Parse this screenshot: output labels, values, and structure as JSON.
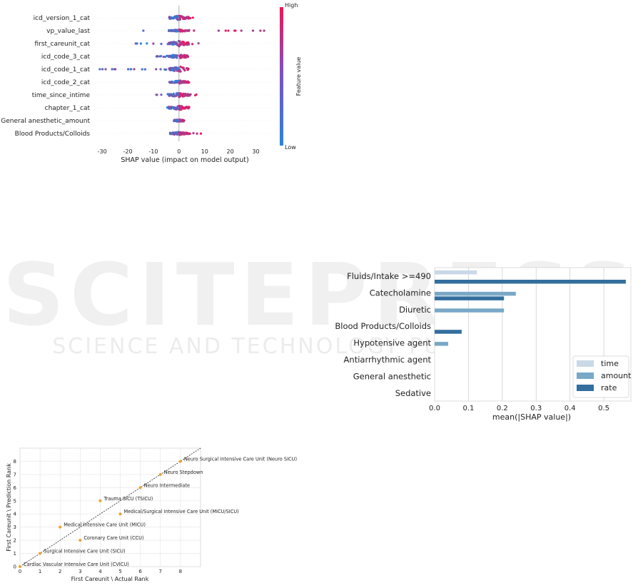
{
  "watermark": {
    "line1": "SCITEPRESS",
    "line2": "SCIENCE AND TECHNOLOGY PUBLICATIONS"
  },
  "chart_data": [
    {
      "type": "scatter",
      "title": "",
      "xlabel": "SHAP value (impact on model output)",
      "ylabel": "",
      "xlim": [
        -32,
        36
      ],
      "xticks": [
        -30,
        -20,
        -10,
        0,
        10,
        20,
        30
      ],
      "colorbar": {
        "label": "Feature value",
        "high": "High",
        "low": "Low",
        "colors": [
          "#1e88e5",
          "#ff0d57"
        ]
      },
      "features": [
        {
          "name": "icd_version_1_cat",
          "min": -5,
          "max": 6,
          "spread": 4
        },
        {
          "name": "vp_value_last",
          "min": -14,
          "max": 34,
          "spread": 2
        },
        {
          "name": "first_careunit_cat",
          "min": -17,
          "max": 8,
          "spread": 5
        },
        {
          "name": "icd_code_3_cat",
          "min": -9,
          "max": 6,
          "spread": 4
        },
        {
          "name": "icd_code_1_cat",
          "min": -31,
          "max": 6,
          "spread": 5
        },
        {
          "name": "icd_code_2_cat",
          "min": -3,
          "max": 4,
          "spread": 3
        },
        {
          "name": "time_since_intime",
          "min": -9,
          "max": 7,
          "spread": 4
        },
        {
          "name": "chapter_1_cat",
          "min": -5,
          "max": 4,
          "spread": 4
        },
        {
          "name": "General anesthetic_amount",
          "min": -2,
          "max": 2,
          "spread": 2
        },
        {
          "name": "Blood Products/Colloids",
          "min": -3,
          "max": 9,
          "spread": 3
        }
      ]
    },
    {
      "type": "bar",
      "orientation": "horizontal",
      "xlabel": "mean(|SHAP value|)",
      "xlim": [
        0,
        0.58
      ],
      "xticks": [
        "0.0",
        "0.1",
        "0.2",
        "0.3",
        "0.4",
        "0.5"
      ],
      "categories": [
        "Fluids/Intake >=490",
        "Catecholamine",
        "Diuretic",
        "Blood Products/Colloids",
        "Hypotensive agent",
        "Antiarrhythmic agent",
        "General anesthetic",
        "Sedative"
      ],
      "series": [
        {
          "name": "time",
          "color": "#c9d8e6",
          "values": [
            0.125,
            0.0,
            0.0,
            0.0,
            0.0,
            0.0,
            0.0,
            0.0
          ]
        },
        {
          "name": "amount",
          "color": "#7aa8c7",
          "values": [
            0.0,
            0.24,
            0.205,
            0.0,
            0.04,
            0.0,
            0.0,
            0.0
          ]
        },
        {
          "name": "rate",
          "color": "#336e9e",
          "values": [
            0.565,
            0.205,
            0.0,
            0.08,
            0.0,
            0.0,
            0.0,
            0.0
          ]
        }
      ],
      "legend": "lower-right"
    },
    {
      "type": "scatter",
      "xlabel": "First Careunit \\ Actual Rank",
      "ylabel": "First Careunit \\ Prediction Rank",
      "xlim": [
        0,
        9
      ],
      "ylim": [
        0,
        9
      ],
      "xticks": [
        0,
        1,
        2,
        3,
        4,
        5,
        6,
        7,
        8
      ],
      "yticks": [
        0,
        1,
        2,
        3,
        4,
        5,
        6,
        7,
        8
      ],
      "point_color": "#f0a030",
      "points": [
        {
          "x": 0,
          "y": 0,
          "label": "Cardiac Vascular Intensive Care Unit (CVICU)"
        },
        {
          "x": 1,
          "y": 1,
          "label": "Surgical Intensive Care Unit (SICU)"
        },
        {
          "x": 3,
          "y": 2,
          "label": "Coronary Care Unit (CCU)"
        },
        {
          "x": 2,
          "y": 3,
          "label": "Medical Intensive Care Unit (MICU)"
        },
        {
          "x": 5,
          "y": 4,
          "label": "Medical/Surgical Intensive Care Unit (MICU/SICU)"
        },
        {
          "x": 4,
          "y": 5,
          "label": "Trauma SICU (TSICU)"
        },
        {
          "x": 6,
          "y": 6,
          "label": "Neuro Intermediate"
        },
        {
          "x": 7,
          "y": 7,
          "label": "Neuro Stepdown"
        },
        {
          "x": 8,
          "y": 8,
          "label": "Neuro Surgical Intensive Care Unit (Neuro SICU)"
        }
      ]
    }
  ]
}
